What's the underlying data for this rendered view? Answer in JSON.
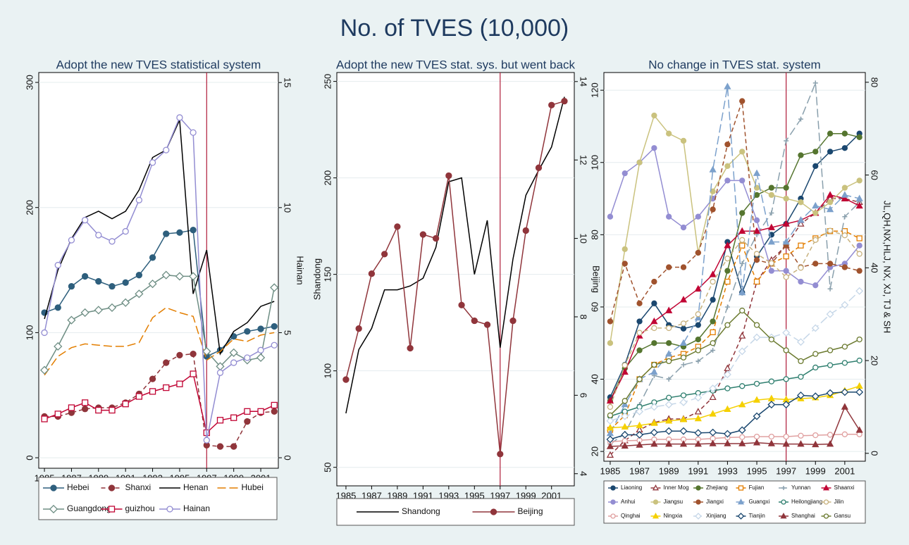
{
  "title": "No. of TVES (10,000)",
  "chart_data": [
    {
      "type": "line",
      "title": "Adopt the new TVES  statistical system",
      "x": [
        1985,
        1986,
        1987,
        1988,
        1989,
        1990,
        1991,
        1992,
        1993,
        1994,
        1995,
        1996,
        1997,
        1998,
        1999,
        2000,
        2001,
        2002
      ],
      "xlim": [
        1984.58,
        2002.3
      ],
      "xticks": [
        1985,
        1987,
        1989,
        1991,
        1993,
        1995,
        1997,
        1999,
        2001
      ],
      "ylim": [
        -8.4,
        307.9
      ],
      "yticks": [
        0,
        100,
        200,
        300
      ],
      "y2lim": [
        -0.42,
        15.4
      ],
      "y2ticks": [
        0,
        5,
        10,
        15
      ],
      "y2label": "Hainan",
      "vline": 1997,
      "vline_color": "#b01d3a",
      "grid": true,
      "legend_columns": 4,
      "series": [
        {
          "name": "Hebei",
          "color": "#2e5f7d",
          "marker": "circle",
          "dash": "solid",
          "values": [
            116,
            120,
            137,
            145,
            141,
            137,
            140,
            146,
            160,
            179,
            180,
            182,
            81,
            86,
            97,
            101,
            103,
            105
          ]
        },
        {
          "name": "Shanxi",
          "color": "#90353b",
          "marker": "circle",
          "dash": "dash",
          "values": [
            33,
            33,
            36,
            39,
            40,
            40,
            44,
            51,
            63,
            76,
            82,
            83,
            10,
            9,
            9,
            29,
            36,
            37
          ]
        },
        {
          "name": "Henan",
          "color": "#000000",
          "marker": "none",
          "dash": "solid",
          "values": [
            111,
            150,
            175,
            192,
            197,
            191,
            197,
            214,
            240,
            246,
            270,
            131,
            166,
            83,
            101,
            108,
            121,
            125
          ]
        },
        {
          "name": "Hubei",
          "color": "#e37e00",
          "marker": "none",
          "dash": "longdash",
          "values": [
            66,
            81,
            88,
            91,
            90,
            89,
            89,
            92,
            112,
            120,
            116,
            113,
            78,
            85,
            95,
            93,
            98,
            100
          ]
        },
        {
          "name": "Guangdong",
          "color": "#6e8e84",
          "marker": "diamond-hollow",
          "dash": "solid",
          "values": [
            70,
            89,
            110,
            116,
            118,
            120,
            124,
            131,
            139,
            146,
            145,
            145,
            85,
            73,
            84,
            78,
            80,
            136
          ]
        },
        {
          "name": "guizhou",
          "color": "#c10534",
          "marker": "square-hollow",
          "dash": "solid",
          "values": [
            31,
            35,
            40,
            44,
            38,
            38,
            43,
            49,
            53,
            56,
            59,
            67,
            20,
            30,
            32,
            37,
            37,
            42
          ]
        },
        {
          "name": "Hainan",
          "color": "#938dd2",
          "marker": "circle-hollow",
          "dash": "solid",
          "axis": "y2",
          "values": [
            5.0,
            7.7,
            8.7,
            9.5,
            8.9,
            8.65,
            9.05,
            10.3,
            11.8,
            12.3,
            13.6,
            13.0,
            0.7,
            3.4,
            3.8,
            4.0,
            4.3,
            4.5
          ]
        }
      ]
    },
    {
      "type": "line",
      "title": "Adopt the new TVES stat. sys. but went back",
      "x": [
        1985,
        1986,
        1987,
        1988,
        1989,
        1990,
        1991,
        1992,
        1993,
        1994,
        1995,
        1996,
        1997,
        1998,
        1999,
        2000,
        2001,
        2002
      ],
      "xlim": [
        1984.29,
        2002.77
      ],
      "xticks": [
        1985,
        1987,
        1989,
        1991,
        1993,
        1995,
        1997,
        1999,
        2001
      ],
      "ylim": [
        40.4,
        254.6
      ],
      "yticks": [
        50,
        100,
        150,
        200,
        250
      ],
      "ylabel": "Shandong",
      "y2lim": [
        3.69,
        14.23
      ],
      "y2ticks": [
        4,
        6,
        8,
        10,
        12,
        14
      ],
      "y2label": "Beijing",
      "vline": 1997,
      "vline_color": "#b01d3a",
      "grid": true,
      "legend_columns": 2,
      "series": [
        {
          "name": "Shandong",
          "color": "#000000",
          "marker": "none",
          "dash": "solid",
          "values": [
            78,
            111,
            122,
            142,
            142,
            144,
            148,
            164,
            198,
            200,
            150,
            178,
            112,
            158,
            191,
            204,
            216,
            242
          ]
        },
        {
          "name": "Beijing",
          "color": "#90353b",
          "marker": "circle",
          "dash": "solid",
          "axis": "y2",
          "values": [
            6.4,
            7.7,
            9.1,
            9.6,
            10.3,
            7.2,
            10.1,
            10.0,
            11.6,
            8.3,
            7.9,
            7.8,
            4.5,
            7.9,
            10.2,
            11.8,
            13.4,
            13.5
          ]
        }
      ]
    },
    {
      "type": "line",
      "title": "No change in TVES stat. system",
      "x": [
        1985,
        1986,
        1987,
        1988,
        1989,
        1990,
        1991,
        1992,
        1993,
        1994,
        1995,
        1996,
        1997,
        1998,
        1999,
        2000,
        2001,
        2002
      ],
      "xlim": [
        1984.57,
        2002.4
      ],
      "xticks": [
        1985,
        1987,
        1989,
        1991,
        1993,
        1995,
        1997,
        1999,
        2001
      ],
      "ylim": [
        17.3,
        124.9
      ],
      "yticks": [
        20,
        40,
        60,
        80,
        100,
        120
      ],
      "y2lim": [
        -1.7,
        82.1
      ],
      "y2ticks": [
        0,
        20,
        40,
        60,
        80
      ],
      "y2label": "JL,QH,NX,HLJ, NX,  XJ,  TJ & SH",
      "vline": 1997,
      "vline_color": "#b01d3a",
      "grid": true,
      "legend_columns": 6,
      "series": [
        {
          "name": "Liaoning",
          "color": "#1a476f",
          "marker": "circle",
          "dash": "solid",
          "values": [
            35,
            44,
            56,
            61,
            55,
            54,
            55,
            62,
            78,
            64,
            74,
            80,
            83,
            90,
            99,
            103,
            104,
            108
          ]
        },
        {
          "name": "Inner Mog",
          "color": "#90353b",
          "marker": "triangle-hollow",
          "dash": "dash",
          "values": [
            19,
            23,
            26,
            28,
            29,
            29,
            31,
            35,
            43,
            52,
            67,
            73,
            77,
            83,
            86,
            90,
            90,
            89
          ]
        },
        {
          "name": "Zhejiang",
          "color": "#55752f",
          "marker": "circle",
          "dash": "solid",
          "values": [
            34,
            43,
            48,
            50,
            50,
            49,
            51,
            56,
            70,
            86,
            91,
            93,
            93,
            102,
            103,
            108,
            108,
            107
          ]
        },
        {
          "name": "Fujian",
          "color": "#e37e00",
          "marker": "square-hollow",
          "dash": "dash",
          "values": [
            26,
            30,
            40,
            44,
            46,
            47,
            49,
            53,
            67,
            77,
            67,
            72,
            74,
            77,
            79,
            81,
            81,
            79
          ]
        },
        {
          "name": "Yunnan",
          "color": "#8aa0ad",
          "marker": "plus",
          "dash": "longdash",
          "values": [
            22,
            25,
            33,
            41,
            40,
            44,
            45,
            48,
            60,
            72,
            80,
            86,
            106,
            112,
            122,
            65,
            85,
            89
          ]
        },
        {
          "name": "Shaanxi",
          "color": "#c10534",
          "marker": "triangle",
          "dash": "solid",
          "values": [
            34,
            42,
            52,
            56,
            59,
            62,
            65,
            69,
            77,
            81,
            81,
            82,
            83,
            84,
            86,
            91,
            90,
            88
          ]
        },
        {
          "name": "Anhui",
          "color": "#938dd2",
          "marker": "circle",
          "dash": "solid",
          "values": [
            85,
            97,
            100,
            104,
            85,
            82,
            85,
            90,
            95,
            95,
            84,
            70,
            70,
            67,
            66,
            71,
            72,
            77
          ]
        },
        {
          "name": "Jiangsu",
          "color": "#cac27e",
          "marker": "circle",
          "dash": "solid",
          "values": [
            50,
            76,
            100,
            113,
            108,
            106,
            75,
            92,
            99,
            103,
            93,
            91,
            90,
            89,
            86,
            89,
            93,
            95
          ]
        },
        {
          "name": "Jiangxi",
          "color": "#a0522d",
          "marker": "circle",
          "dash": "dash",
          "values": [
            56,
            72,
            61,
            67,
            71,
            71,
            75,
            87,
            105,
            117,
            73,
            72,
            77,
            71,
            72,
            72,
            71,
            70
          ]
        },
        {
          "name": "Guangxi",
          "color": "#7ca1cc",
          "marker": "triangle",
          "dash": "longdash",
          "values": [
            25,
            33,
            40,
            42,
            47,
            50,
            57,
            98,
            121,
            64,
            97,
            78,
            78,
            84,
            88,
            87,
            91,
            90
          ]
        },
        {
          "name": "Heilongjiang",
          "color": "#2f7f6f",
          "marker": "circle-hollow",
          "dash": "solid",
          "axis": "y2",
          "values": [
            8,
            9,
            10,
            11,
            12,
            12.5,
            13,
            13.5,
            14,
            14.5,
            15,
            15.5,
            16,
            16.5,
            18.5,
            19,
            19.5,
            20
          ]
        },
        {
          "name": "Jilin",
          "color": "#c8b27e",
          "marker": "circle-hollow",
          "dash": "dash",
          "axis": "y2",
          "values": [
            10,
            19,
            26,
            27,
            27,
            28,
            30,
            37,
            42,
            46,
            43,
            41,
            38,
            40,
            46,
            48,
            47,
            43
          ]
        },
        {
          "name": "Qinghai",
          "color": "#e0a0a0",
          "marker": "circle-hollow",
          "dash": "solid",
          "axis": "y2",
          "values": [
            2.5,
            2.7,
            2.8,
            3,
            3,
            3,
            3,
            3.2,
            3.4,
            3.5,
            3.6,
            3.6,
            3.6,
            3.8,
            3.9,
            4,
            4.1,
            4.1
          ]
        },
        {
          "name": "Ningxia",
          "color": "#f5d000",
          "marker": "triangle",
          "dash": "solid",
          "axis": "y2",
          "values": [
            5.5,
            5.7,
            6,
            6.5,
            7,
            7.3,
            7.5,
            8.5,
            9.5,
            10.5,
            11.5,
            11.8,
            11.6,
            11.8,
            12,
            12.5,
            13.5,
            14.5
          ]
        },
        {
          "name": "Xinjiang",
          "color": "#c6d7e8",
          "marker": "diamond-hollow",
          "dash": "longdash",
          "axis": "y2",
          "values": [
            7,
            8,
            9,
            10,
            10.5,
            11,
            12,
            14,
            17,
            22,
            25,
            25,
            26,
            24,
            27,
            30,
            32,
            35
          ]
        },
        {
          "name": "Tianjin",
          "color": "#1a476f",
          "marker": "diamond-hollow",
          "dash": "solid",
          "axis": "y2",
          "values": [
            3,
            4,
            4,
            4.5,
            4.8,
            4.8,
            4.4,
            4.5,
            4.2,
            5,
            8,
            10.5,
            10.5,
            12.5,
            12.3,
            13,
            13.2,
            13.2
          ]
        },
        {
          "name": "Shanghai",
          "color": "#90353b",
          "marker": "triangle",
          "dash": "solid",
          "axis": "y2",
          "values": [
            1.5,
            1.6,
            1.8,
            2,
            2,
            2,
            2,
            2.1,
            2.1,
            2.1,
            2.3,
            2.1,
            2,
            2,
            1.9,
            2,
            10,
            5
          ]
        },
        {
          "name": "Gansu",
          "color": "#6b7a2f",
          "marker": "circle-hollow",
          "dash": "solid",
          "values": [
            30,
            34,
            40,
            44,
            45,
            46,
            48,
            50,
            55,
            59,
            55,
            51,
            48,
            45,
            47,
            48,
            49,
            51
          ]
        }
      ]
    }
  ]
}
